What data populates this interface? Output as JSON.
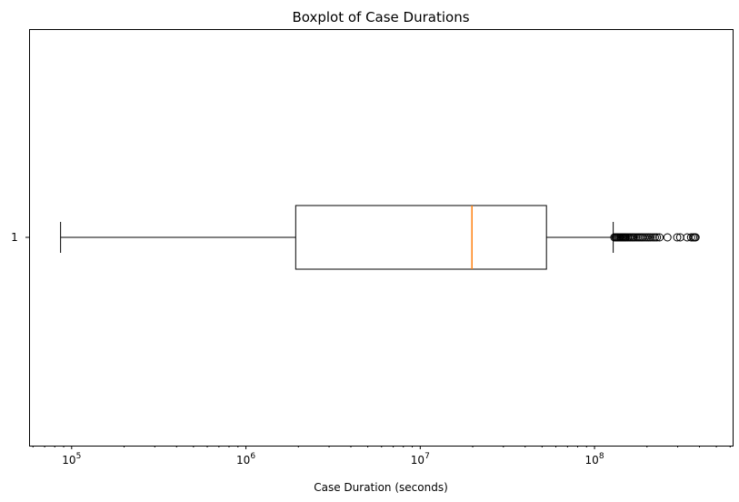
{
  "chart_data": {
    "type": "boxplot",
    "title": "Boxplot of Case Durations",
    "xlabel": "Case Duration (seconds)",
    "ylabel": "",
    "x_scale": "log",
    "xlim": [
      57000,
      620000000
    ],
    "x_ticks": [
      {
        "value": 100000,
        "base": "10",
        "exp": "5"
      },
      {
        "value": 1000000,
        "base": "10",
        "exp": "6"
      },
      {
        "value": 10000000,
        "base": "10",
        "exp": "7"
      },
      {
        "value": 100000000,
        "base": "10",
        "exp": "8"
      }
    ],
    "orientation": "horizontal",
    "grid": false,
    "boxes": [
      {
        "label": "1",
        "whisker_low": 86400,
        "q1": 1930000,
        "median": 19800000,
        "q3": 53000000,
        "whisker_high": 128000000,
        "outliers": [
          130000000,
          132000000,
          134000000,
          136000000,
          138000000,
          140000000,
          142000000,
          144000000,
          146000000,
          148000000,
          150000000,
          152000000,
          155000000,
          158000000,
          161000000,
          164000000,
          167000000,
          170000000,
          174000000,
          178000000,
          182000000,
          186000000,
          190000000,
          195000000,
          200000000,
          205000000,
          210000000,
          216000000,
          222000000,
          228000000,
          236000000,
          262000000,
          298000000,
          310000000,
          340000000,
          358000000,
          368000000,
          375000000,
          380000000
        ]
      }
    ],
    "colors": {
      "box": "#000000",
      "median": "#ff7f0e"
    }
  }
}
